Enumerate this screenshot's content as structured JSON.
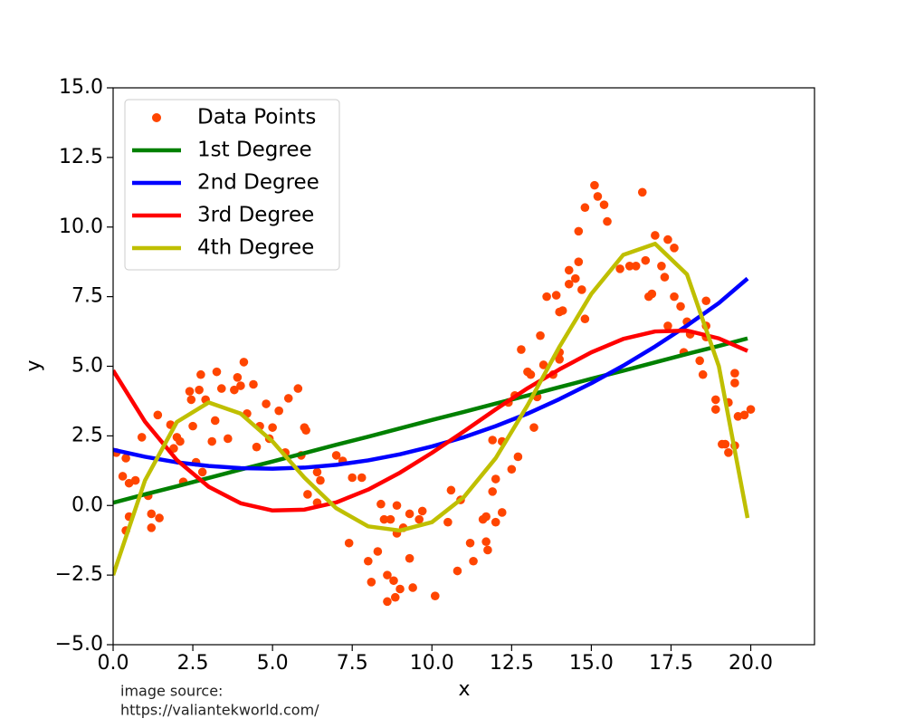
{
  "chart_data": {
    "type": "line",
    "x_label": "x",
    "y_label": "y",
    "source": [
      "image source:",
      "https://valiantekworld.com/"
    ],
    "xlim": [
      0,
      22
    ],
    "ylim": [
      -5,
      15
    ],
    "xticks": [
      {
        "value": 0,
        "label": "0.0"
      },
      {
        "value": 2.5,
        "label": "2.5"
      },
      {
        "value": 5,
        "label": "5.0"
      },
      {
        "value": 7.5,
        "label": "7.5"
      },
      {
        "value": 10,
        "label": "10.0"
      },
      {
        "value": 12.5,
        "label": "12.5"
      },
      {
        "value": 15,
        "label": "15.0"
      },
      {
        "value": 17.5,
        "label": "17.5"
      },
      {
        "value": 20,
        "label": "20.0"
      }
    ],
    "yticks": [
      {
        "value": -5,
        "label": "−5.0"
      },
      {
        "value": -2.5,
        "label": "−2.5"
      },
      {
        "value": 0,
        "label": "0.0"
      },
      {
        "value": 2.5,
        "label": "2.5"
      },
      {
        "value": 5,
        "label": "5.0"
      },
      {
        "value": 7.5,
        "label": "7.5"
      },
      {
        "value": 10,
        "label": "10.0"
      },
      {
        "value": 12.5,
        "label": "12.5"
      },
      {
        "value": 15,
        "label": "15.0"
      }
    ],
    "grid": false,
    "legend": "upper left",
    "x": [
      0,
      1,
      2,
      3,
      4,
      5,
      6,
      7,
      8,
      9,
      10,
      11,
      12,
      13,
      14,
      15,
      16,
      17,
      18,
      19,
      19.9
    ],
    "series": [
      {
        "name": "Data Points",
        "type": "scatter",
        "color": "#ff4500",
        "x": [
          0.1,
          0.3,
          0.4,
          0.4,
          0.5,
          0.5,
          0.7,
          0.9,
          1.1,
          1.2,
          1.2,
          1.4,
          1.45,
          1.8,
          1.9,
          2.0,
          2.1,
          2.2,
          2.4,
          2.45,
          2.5,
          2.6,
          2.7,
          2.75,
          2.8,
          2.9,
          3.1,
          3.2,
          3.25,
          3.4,
          3.6,
          3.8,
          3.9,
          4.0,
          4.1,
          4.2,
          4.4,
          4.5,
          4.6,
          4.8,
          4.9,
          5.0,
          5.2,
          5.4,
          5.5,
          5.8,
          5.9,
          6.0,
          6.05,
          6.1,
          6.4,
          6.4,
          6.5,
          7.0,
          7.2,
          7.4,
          7.5,
          7.8,
          8.0,
          8.1,
          8.3,
          8.4,
          8.5,
          8.6,
          8.6,
          8.7,
          8.8,
          8.85,
          8.9,
          8.9,
          9.0,
          9.1,
          9.3,
          9.3,
          9.4,
          9.6,
          9.7,
          10.1,
          10.5,
          10.6,
          10.8,
          10.9,
          11.2,
          11.3,
          11.6,
          11.7,
          11.7,
          11.75,
          11.9,
          11.9,
          12.0,
          12.0,
          12.2,
          12.2,
          12.4,
          12.5,
          12.6,
          12.7,
          12.8,
          13.0,
          13.1,
          13.2,
          13.3,
          13.4,
          13.5,
          13.6,
          13.9,
          13.8,
          14.0,
          14.0,
          14.1,
          14.0,
          14.3,
          14.3,
          14.5,
          14.6,
          14.6,
          14.7,
          14.8,
          14.8,
          15.1,
          15.2,
          15.4,
          15.5,
          15.9,
          16.2,
          16.4,
          16.6,
          16.7,
          16.8,
          16.9,
          17.0,
          17.2,
          17.3,
          17.4,
          17.4,
          17.6,
          17.6,
          17.8,
          17.9,
          18.0,
          18.1,
          18.4,
          18.5,
          18.6,
          18.6,
          18.6,
          18.9,
          18.9,
          19.1,
          19.2,
          19.3,
          19.3,
          19.5,
          19.5,
          19.5,
          19.6,
          19.8,
          20.0
        ],
        "values": [
          1.9,
          1.05,
          1.7,
          -0.9,
          -0.4,
          0.8,
          0.9,
          2.45,
          0.35,
          -0.8,
          -0.3,
          3.25,
          -0.45,
          2.9,
          2.05,
          2.45,
          2.3,
          0.85,
          4.1,
          3.8,
          2.85,
          1.55,
          4.15,
          4.7,
          1.2,
          3.8,
          2.3,
          3.05,
          4.8,
          4.2,
          2.4,
          4.15,
          4.6,
          4.3,
          5.15,
          3.3,
          4.35,
          2.1,
          2.85,
          3.65,
          2.4,
          2.8,
          3.4,
          1.9,
          3.85,
          4.2,
          1.8,
          2.8,
          2.7,
          0.4,
          1.2,
          0.1,
          0.9,
          1.8,
          1.6,
          -1.35,
          1.0,
          1.0,
          -2.0,
          -2.75,
          -1.65,
          0.05,
          -0.5,
          -3.45,
          -2.5,
          -0.5,
          -2.7,
          -3.3,
          -1.0,
          0.0,
          -3.0,
          -0.8,
          -0.3,
          -1.9,
          -2.95,
          -0.5,
          -0.2,
          -3.25,
          -0.6,
          0.55,
          -2.35,
          0.2,
          -1.35,
          -2.0,
          -0.5,
          -0.4,
          -1.3,
          -1.6,
          0.5,
          2.35,
          -0.6,
          0.95,
          -0.25,
          2.3,
          3.7,
          1.3,
          3.95,
          1.75,
          5.6,
          4.8,
          4.7,
          2.8,
          3.9,
          6.1,
          5.05,
          7.5,
          7.55,
          4.7,
          5.5,
          6.95,
          7.0,
          5.25,
          7.95,
          8.45,
          8.15,
          8.75,
          9.85,
          7.75,
          6.7,
          10.7,
          11.5,
          11.1,
          10.8,
          10.2,
          8.5,
          8.6,
          8.6,
          11.25,
          8.8,
          7.5,
          7.6,
          9.7,
          8.6,
          8.2,
          9.55,
          6.45,
          9.25,
          7.5,
          7.15,
          5.5,
          6.6,
          6.15,
          5.2,
          4.7,
          7.35,
          6.45,
          6.05,
          3.8,
          3.45,
          2.2,
          2.2,
          1.9,
          3.7,
          2.15,
          4.4,
          4.75,
          3.2,
          3.25,
          3.45
        ]
      },
      {
        "name": "1st Degree",
        "color": "#008000",
        "values": [
          0.1,
          0.4,
          0.69,
          0.99,
          1.29,
          1.58,
          1.88,
          2.18,
          2.47,
          2.77,
          3.07,
          3.36,
          3.66,
          3.95,
          4.25,
          4.55,
          4.84,
          5.14,
          5.44,
          5.73,
          6.0
        ]
      },
      {
        "name": "2nd Degree",
        "color": "#0000ff",
        "values": [
          2.0,
          1.75,
          1.55,
          1.42,
          1.34,
          1.32,
          1.36,
          1.46,
          1.62,
          1.84,
          2.12,
          2.45,
          2.85,
          3.3,
          3.82,
          4.39,
          5.02,
          5.71,
          6.46,
          7.27,
          8.15
        ]
      },
      {
        "name": "3rd Degree",
        "color": "#ff0000",
        "values": [
          4.85,
          3.01,
          1.63,
          0.67,
          0.08,
          -0.18,
          -0.15,
          0.11,
          0.57,
          1.18,
          1.89,
          2.66,
          3.45,
          4.21,
          4.89,
          5.5,
          5.98,
          6.25,
          6.28,
          6.0,
          5.55
        ]
      },
      {
        "name": "4th Degree",
        "color": "#bfbf00",
        "values": [
          -2.5,
          0.9,
          3.0,
          3.7,
          3.3,
          2.3,
          1.0,
          -0.1,
          -0.75,
          -0.9,
          -0.6,
          0.3,
          1.7,
          3.6,
          5.7,
          7.6,
          9.0,
          9.4,
          8.3,
          5.0,
          -0.45
        ]
      }
    ]
  }
}
